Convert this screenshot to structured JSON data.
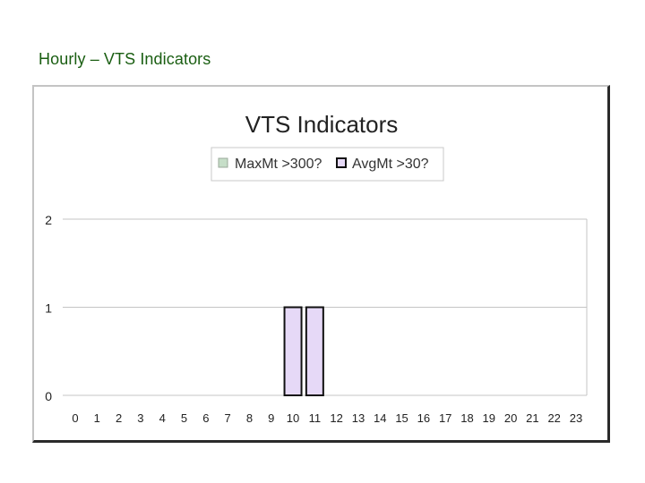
{
  "slide": {
    "title": "Hourly – VTS Indicators"
  },
  "chart_data": {
    "type": "bar",
    "title": "VTS Indicators",
    "categories": [
      "0",
      "1",
      "2",
      "3",
      "4",
      "5",
      "6",
      "7",
      "8",
      "9",
      "10",
      "11",
      "12",
      "13",
      "14",
      "15",
      "16",
      "17",
      "18",
      "19",
      "20",
      "21",
      "22",
      "23"
    ],
    "series": [
      {
        "name": "MaxMt >300?",
        "color": "#c6dec8",
        "values": [
          0,
          0,
          0,
          0,
          0,
          0,
          0,
          0,
          0,
          0,
          0,
          0,
          0,
          0,
          0,
          0,
          0,
          0,
          0,
          0,
          0,
          0,
          0,
          0
        ]
      },
      {
        "name": "AvgMt >30?",
        "color": "#e6d9f7",
        "values": [
          0,
          0,
          0,
          0,
          0,
          0,
          0,
          0,
          0,
          0,
          1,
          1,
          0,
          0,
          0,
          0,
          0,
          0,
          0,
          0,
          0,
          0,
          0,
          0
        ]
      }
    ],
    "yticks": [
      "0",
      "1",
      "2"
    ],
    "ylim": [
      0,
      2
    ],
    "grid": true,
    "legend": "top",
    "xlabel": "",
    "ylabel": ""
  }
}
